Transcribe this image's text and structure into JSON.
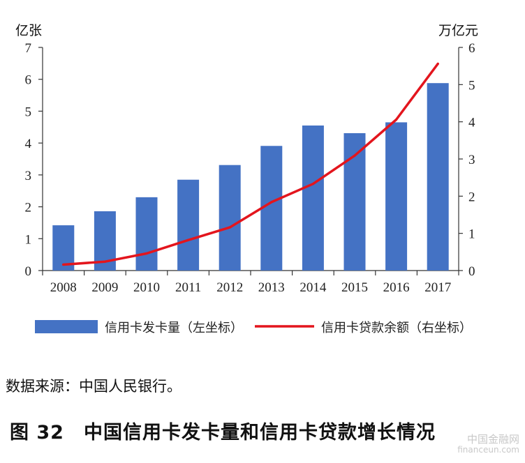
{
  "chart_data": {
    "type": "bar",
    "categories": [
      "2008",
      "2009",
      "2010",
      "2011",
      "2012",
      "2013",
      "2014",
      "2015",
      "2016",
      "2017"
    ],
    "series": [
      {
        "name": "信用卡发卡量（左坐标）",
        "type": "bar",
        "axis": "left",
        "color": "#4472C4",
        "values": [
          1.42,
          1.86,
          2.3,
          2.85,
          3.31,
          3.91,
          4.55,
          4.31,
          4.65,
          5.88
        ]
      },
      {
        "name": "信用卡贷款余额（右坐标）",
        "type": "line",
        "axis": "right",
        "color": "#E3151D",
        "values": [
          0.16,
          0.24,
          0.46,
          0.82,
          1.16,
          1.84,
          2.33,
          3.09,
          4.06,
          5.56
        ]
      }
    ],
    "left_axis": {
      "unit": "亿张",
      "ylim": [
        0,
        7
      ],
      "ticks": [
        "0",
        "1",
        "2",
        "3",
        "4",
        "5",
        "6",
        "7"
      ]
    },
    "right_axis": {
      "unit": "万亿元",
      "ylim": [
        0,
        6
      ],
      "ticks": [
        "0",
        "1",
        "2",
        "3",
        "4",
        "5",
        "6"
      ]
    },
    "grid": false,
    "legend_position": "bottom"
  },
  "source_text": "数据来源：中国人民银行。",
  "caption": {
    "label": "图 32",
    "title": "中国信用卡发卡量和信用卡贷款增长情况"
  },
  "watermark": {
    "line1": "中国金融网",
    "line2": "financeun.com"
  }
}
